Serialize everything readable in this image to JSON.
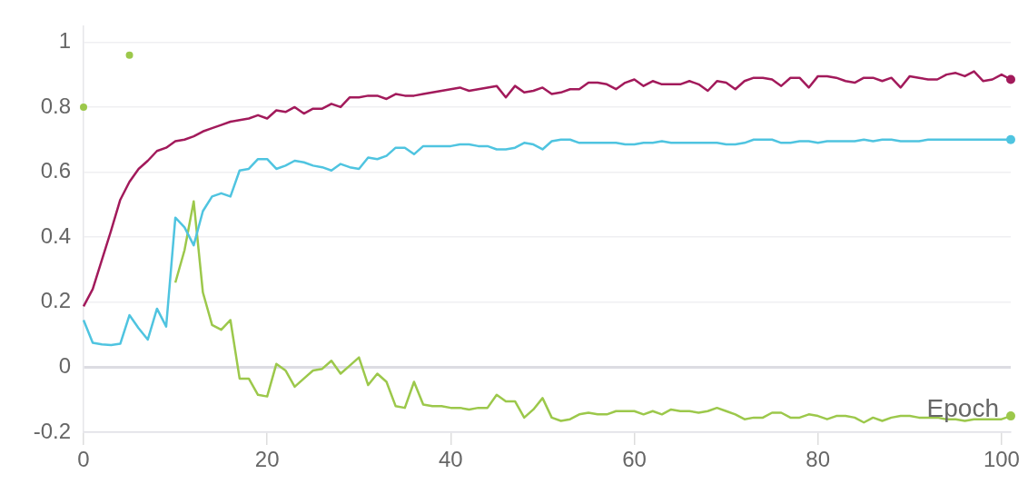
{
  "chart_data": {
    "type": "line",
    "xlabel": "Epoch",
    "x": [
      0,
      1,
      2,
      3,
      4,
      5,
      6,
      7,
      8,
      9,
      10,
      11,
      12,
      13,
      14,
      15,
      16,
      17,
      18,
      19,
      20,
      21,
      22,
      23,
      24,
      25,
      26,
      27,
      28,
      29,
      30,
      31,
      32,
      33,
      34,
      35,
      36,
      37,
      38,
      39,
      40,
      41,
      42,
      43,
      44,
      45,
      46,
      47,
      48,
      49,
      50,
      51,
      52,
      53,
      54,
      55,
      56,
      57,
      58,
      59,
      60,
      61,
      62,
      63,
      64,
      65,
      66,
      67,
      68,
      69,
      70,
      71,
      72,
      73,
      74,
      75,
      76,
      77,
      78,
      79,
      80,
      81,
      82,
      83,
      84,
      85,
      86,
      87,
      88,
      89,
      90,
      91,
      92,
      93,
      94,
      95,
      96,
      97,
      98,
      99,
      100,
      101
    ],
    "series": [
      {
        "color": "#a21a5b",
        "values": [
          0.187,
          0.24,
          0.33,
          0.42,
          0.515,
          0.57,
          0.61,
          0.635,
          0.665,
          0.675,
          0.695,
          0.7,
          0.71,
          0.725,
          0.735,
          0.745,
          0.755,
          0.76,
          0.765,
          0.775,
          0.765,
          0.79,
          0.785,
          0.8,
          0.78,
          0.795,
          0.795,
          0.81,
          0.8,
          0.83,
          0.83,
          0.835,
          0.835,
          0.825,
          0.84,
          0.835,
          0.835,
          0.84,
          0.845,
          0.85,
          0.855,
          0.86,
          0.85,
          0.855,
          0.86,
          0.865,
          0.83,
          0.865,
          0.845,
          0.85,
          0.86,
          0.84,
          0.845,
          0.855,
          0.855,
          0.875,
          0.875,
          0.87,
          0.855,
          0.875,
          0.885,
          0.865,
          0.88,
          0.87,
          0.87,
          0.87,
          0.88,
          0.87,
          0.85,
          0.88,
          0.875,
          0.855,
          0.88,
          0.89,
          0.89,
          0.885,
          0.865,
          0.89,
          0.89,
          0.86,
          0.895,
          0.895,
          0.89,
          0.88,
          0.875,
          0.89,
          0.89,
          0.88,
          0.89,
          0.86,
          0.895,
          0.89,
          0.885,
          0.885,
          0.9,
          0.905,
          0.895,
          0.91,
          0.88,
          0.885,
          0.9,
          0.885
        ]
      },
      {
        "color": "#4fc4e0",
        "values": [
          0.145,
          0.075,
          0.07,
          0.068,
          0.072,
          0.16,
          0.12,
          0.085,
          0.18,
          0.125,
          0.46,
          0.43,
          0.375,
          0.48,
          0.525,
          0.535,
          0.525,
          0.605,
          0.61,
          0.64,
          0.64,
          0.61,
          0.62,
          0.635,
          0.63,
          0.62,
          0.615,
          0.605,
          0.625,
          0.615,
          0.61,
          0.645,
          0.64,
          0.65,
          0.675,
          0.675,
          0.655,
          0.68,
          0.68,
          0.68,
          0.68,
          0.685,
          0.685,
          0.68,
          0.68,
          0.67,
          0.67,
          0.675,
          0.69,
          0.685,
          0.67,
          0.695,
          0.7,
          0.7,
          0.69,
          0.69,
          0.69,
          0.69,
          0.69,
          0.685,
          0.685,
          0.69,
          0.69,
          0.695,
          0.69,
          0.69,
          0.69,
          0.69,
          0.69,
          0.69,
          0.685,
          0.685,
          0.69,
          0.7,
          0.7,
          0.7,
          0.69,
          0.69,
          0.695,
          0.695,
          0.69,
          0.695,
          0.695,
          0.695,
          0.695,
          0.7,
          0.695,
          0.7,
          0.7,
          0.695,
          0.695,
          0.695,
          0.7,
          0.7,
          0.7,
          0.7,
          0.7,
          0.7,
          0.7,
          0.7,
          0.7,
          0.7
        ]
      },
      {
        "color": "#9cc84b",
        "values": [
          0.8,
          null,
          null,
          null,
          null,
          0.96,
          null,
          null,
          null,
          null,
          0.26,
          0.36,
          0.51,
          0.23,
          0.13,
          0.115,
          0.145,
          -0.035,
          -0.035,
          -0.085,
          -0.09,
          0.01,
          -0.01,
          -0.06,
          -0.035,
          -0.01,
          -0.005,
          0.02,
          -0.02,
          0.005,
          0.03,
          -0.055,
          -0.02,
          -0.045,
          -0.12,
          -0.125,
          -0.045,
          -0.115,
          -0.12,
          -0.12,
          -0.125,
          -0.125,
          -0.13,
          -0.125,
          -0.125,
          -0.085,
          -0.105,
          -0.105,
          -0.155,
          -0.13,
          -0.095,
          -0.155,
          -0.165,
          -0.16,
          -0.145,
          -0.14,
          -0.145,
          -0.145,
          -0.135,
          -0.135,
          -0.135,
          -0.145,
          -0.135,
          -0.145,
          -0.13,
          -0.135,
          -0.135,
          -0.14,
          -0.135,
          -0.125,
          -0.135,
          -0.145,
          -0.16,
          -0.155,
          -0.155,
          -0.14,
          -0.14,
          -0.155,
          -0.155,
          -0.145,
          -0.15,
          -0.16,
          -0.15,
          -0.15,
          -0.155,
          -0.17,
          -0.155,
          -0.165,
          -0.155,
          -0.15,
          -0.15,
          -0.155,
          -0.155,
          -0.155,
          -0.16,
          -0.16,
          -0.165,
          -0.16,
          -0.16,
          -0.16,
          -0.16,
          -0.15
        ]
      }
    ],
    "xlim": [
      0,
      101
    ],
    "xticks": [
      0,
      20,
      40,
      60,
      80,
      100
    ],
    "ylim": [
      -0.2,
      1.05
    ],
    "yticks": [
      -0.2,
      0,
      0.2,
      0.4,
      0.6,
      0.8,
      1
    ],
    "grid": "y",
    "legend": false
  }
}
